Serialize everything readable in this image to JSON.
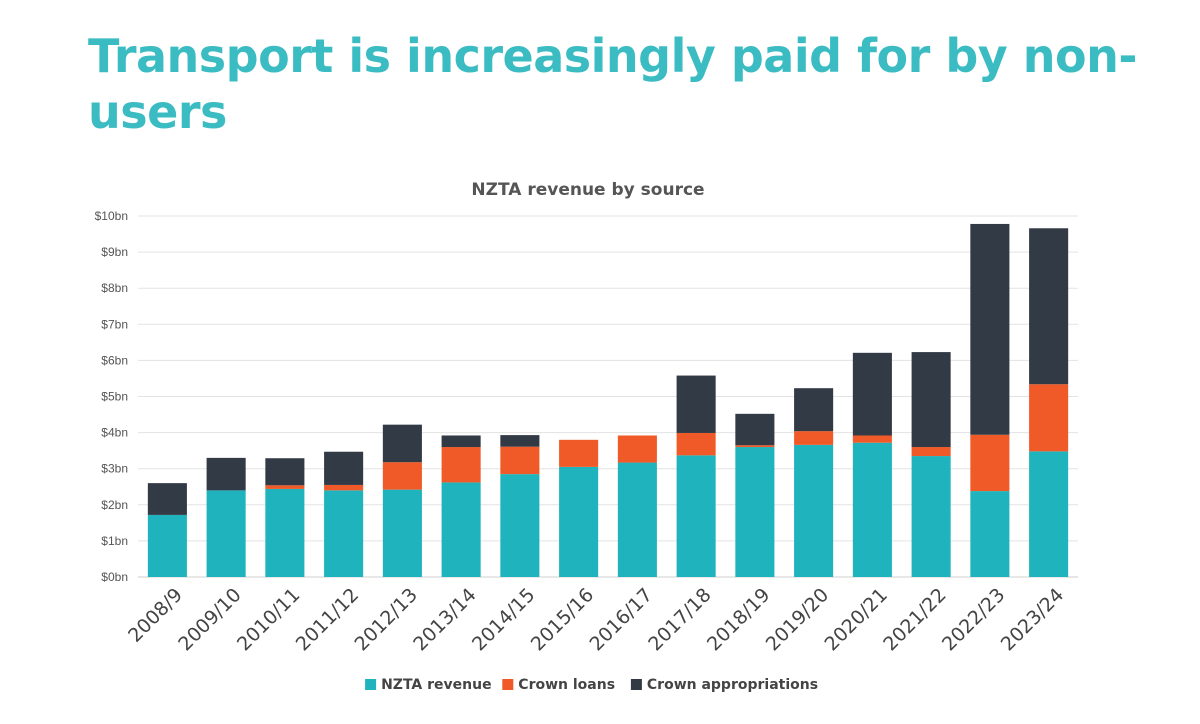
{
  "page": {
    "title": "Transport is increasingly paid for by non-users",
    "title_color": "#3bbcc3"
  },
  "chart_data": {
    "type": "bar",
    "stacked": true,
    "title": "NZTA revenue by source",
    "xlabel": "",
    "ylabel": "",
    "ylim": [
      0,
      10
    ],
    "yticks": [
      0,
      1,
      2,
      3,
      4,
      5,
      6,
      7,
      8,
      9,
      10
    ],
    "ytick_labels": [
      "$0bn",
      "$1bn",
      "$2bn",
      "$3bn",
      "$4bn",
      "$5bn",
      "$6bn",
      "$7bn",
      "$8bn",
      "$9bn",
      "$10bn"
    ],
    "grid": true,
    "legend_position": "bottom",
    "categories": [
      "2008/9",
      "2009/10",
      "2010/11",
      "2011/12",
      "2012/13",
      "2013/14",
      "2014/15",
      "2015/16",
      "2016/17",
      "2017/18",
      "2018/19",
      "2019/20",
      "2020/21",
      "2021/22",
      "2022/23",
      "2023/24"
    ],
    "series": [
      {
        "name": "NZTA revenue",
        "color": "#1fb4bd",
        "values": [
          1.72,
          2.4,
          2.44,
          2.4,
          2.42,
          2.62,
          2.85,
          3.05,
          3.17,
          3.37,
          3.6,
          3.66,
          3.72,
          3.35,
          2.38,
          3.48
        ]
      },
      {
        "name": "Crown loans",
        "color": "#f05a28",
        "values": [
          0,
          0,
          0.1,
          0.15,
          0.76,
          0.98,
          0.76,
          0.75,
          0.75,
          0.62,
          0.05,
          0.38,
          0.2,
          0.25,
          1.56,
          1.86
        ]
      },
      {
        "name": "Crown appropriations",
        "color": "#323a45",
        "values": [
          0.88,
          0.9,
          0.75,
          0.92,
          1.04,
          0.32,
          0.32,
          0,
          0,
          1.59,
          0.87,
          1.19,
          2.29,
          2.63,
          5.84,
          4.32
        ]
      }
    ]
  }
}
